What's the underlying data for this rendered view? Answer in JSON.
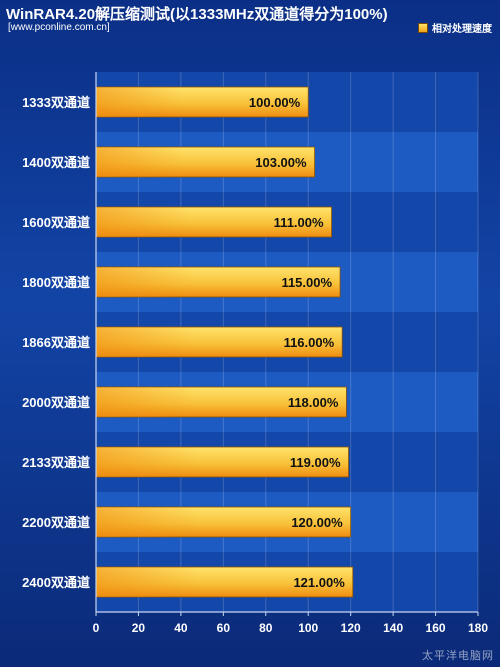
{
  "chart_data": {
    "type": "bar",
    "orientation": "horizontal",
    "title": "WinRAR4.20解压缩测试(以1333MHz双通道得分为100%)",
    "subtitle": "[www.pconline.com.cn]",
    "legend": {
      "position": "top-right",
      "entries": [
        "相对处理速度"
      ]
    },
    "categories": [
      "1333双通道",
      "1400双通道",
      "1600双通道",
      "1800双通道",
      "1866双通道",
      "2000双通道",
      "2133双通道",
      "2200双通道",
      "2400双通道"
    ],
    "values": [
      100,
      103,
      111,
      115,
      116,
      118,
      119,
      120,
      121
    ],
    "data_labels": [
      "100.00%",
      "103.00%",
      "111.00%",
      "115.00%",
      "116.00%",
      "118.00%",
      "119.00%",
      "120.00%",
      "121.00%"
    ],
    "xlim": [
      0,
      180
    ],
    "xticks": [
      "0",
      "20",
      "40",
      "60",
      "80",
      "100",
      "120",
      "140",
      "160",
      "180"
    ],
    "grid": true,
    "colors": {
      "bar_top": "#ffe36b",
      "bar_mid": "#f8c23a",
      "bar_bottom": "#ef8c10",
      "band_light": "#1d5bc2",
      "band_dark": "#1447aa"
    }
  },
  "watermark": "太平洋电脑网"
}
